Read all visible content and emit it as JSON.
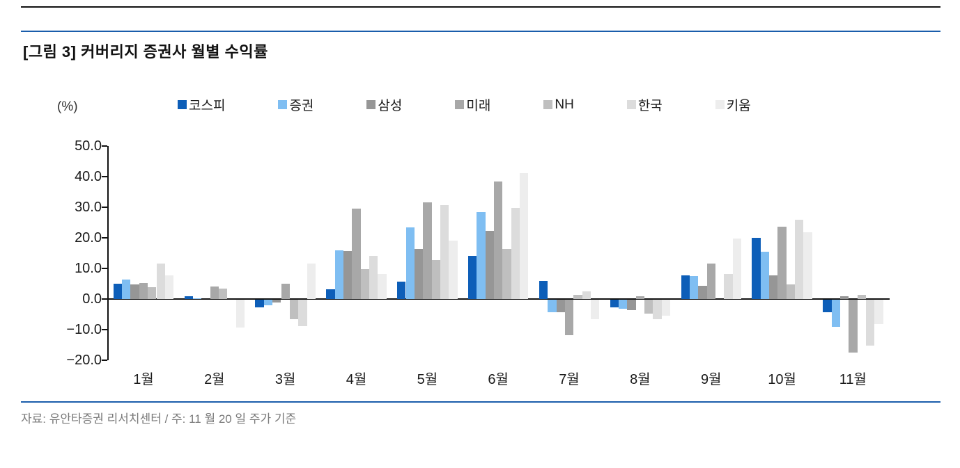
{
  "header": {
    "title": "[그림 3] 커버리지 증권사 월별 수익률"
  },
  "footer": {
    "source": "자료: 유안타증권 리서치센터 / 주: 11 월 20 일 주가 기준"
  },
  "chart_data": {
    "type": "bar",
    "title": "[그림 3] 커버리지 증권사 월별 수익률",
    "unit_label": "(%)",
    "xlabel": "",
    "ylabel": "(%)",
    "ylim": [
      -20,
      50
    ],
    "grid": false,
    "legend_position": "top",
    "categories": [
      "1월",
      "2월",
      "3월",
      "4월",
      "5월",
      "6월",
      "7월",
      "8월",
      "9월",
      "10월",
      "11월"
    ],
    "series": [
      {
        "name": "코스피",
        "color": "#0d5eb8",
        "values": [
          5.0,
          0.8,
          -2.4,
          3.2,
          5.7,
          14.2,
          5.8,
          -2.5,
          7.7,
          20.1,
          -4.2
        ]
      },
      {
        "name": "증권",
        "color": "#7fbef2",
        "values": [
          6.3,
          0.3,
          -1.8,
          16.0,
          23.3,
          28.5,
          -4.2,
          -3.0,
          7.6,
          15.4,
          -8.9
        ]
      },
      {
        "name": "삼성",
        "color": "#969696",
        "values": [
          4.8,
          0.0,
          -0.9,
          15.7,
          16.3,
          22.3,
          -4.0,
          -3.5,
          4.4,
          7.8,
          1.0
        ]
      },
      {
        "name": "미래",
        "color": "#a8a8a8",
        "values": [
          5.2,
          4.2,
          4.9,
          29.5,
          31.5,
          38.3,
          -11.5,
          1.0,
          11.7,
          23.6,
          -17.3
        ]
      },
      {
        "name": "NH",
        "color": "#bfbfbf",
        "values": [
          3.8,
          3.4,
          -6.4,
          9.8,
          12.7,
          16.4,
          1.3,
          -4.5,
          0.0,
          4.7,
          1.3
        ]
      },
      {
        "name": "한국",
        "color": "#dcdcdc",
        "values": [
          11.7,
          0.0,
          -8.7,
          14.2,
          30.7,
          29.8,
          2.4,
          -6.4,
          8.2,
          26.0,
          -15.0
        ]
      },
      {
        "name": "키움",
        "color": "#ededed",
        "values": [
          7.8,
          -9.1,
          11.7,
          8.2,
          19.0,
          41.2,
          -6.4,
          -5.2,
          19.8,
          21.8,
          -8.0
        ]
      }
    ],
    "y_ticks": [
      {
        "label": "50.0",
        "value": 50
      },
      {
        "label": "40.0",
        "value": 40
      },
      {
        "label": "30.0",
        "value": 30
      },
      {
        "label": "20.0",
        "value": 20
      },
      {
        "label": "10.0",
        "value": 10
      },
      {
        "label": "0.0",
        "value": 0
      },
      {
        "label": "−10.0",
        "value": -10
      },
      {
        "label": "−20.0",
        "value": -20
      }
    ]
  }
}
